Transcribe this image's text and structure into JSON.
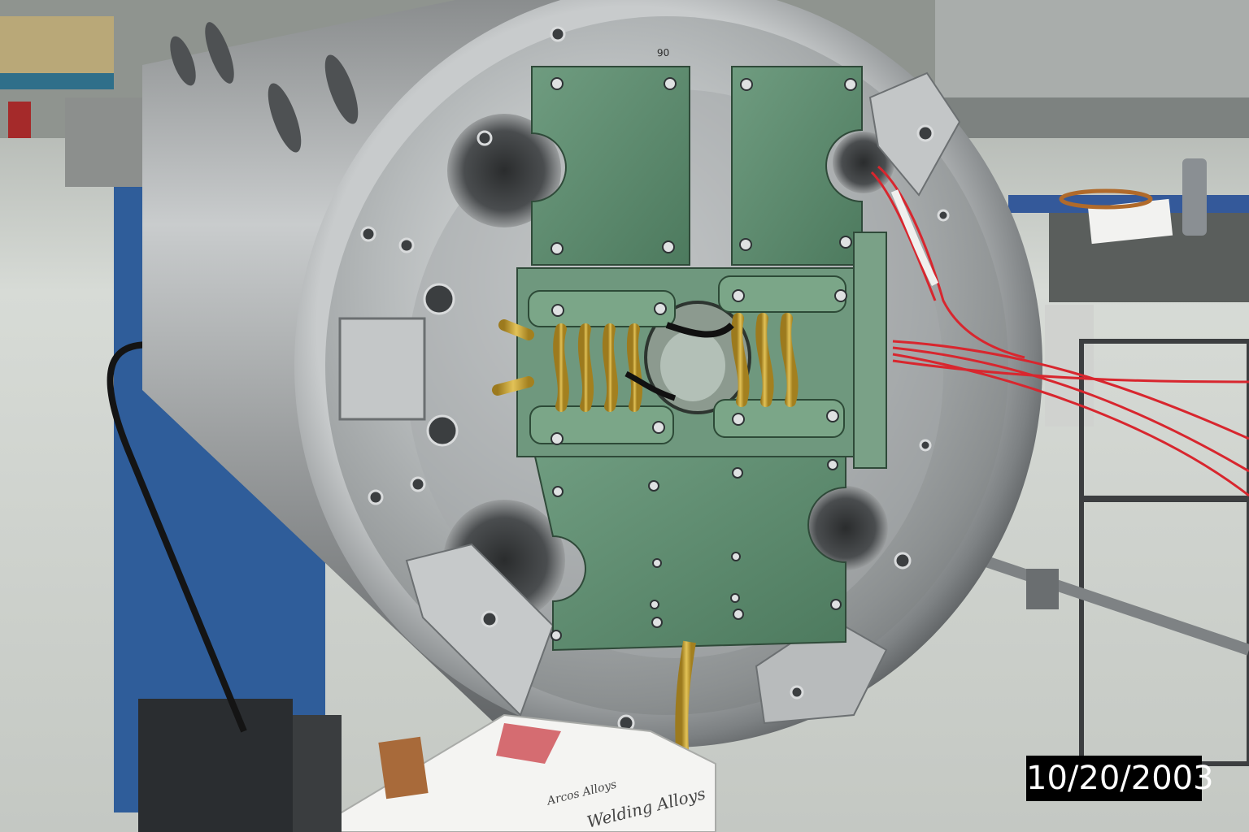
{
  "photo": {
    "description_label": "",
    "date_stamp": "10/20/2003",
    "end_plate_marking": "90",
    "box_brand": "Arcos Alloys",
    "box_tagline": "Welding Alloys"
  },
  "colors": {
    "steel": "#b9bcbd",
    "steel_dark": "#6e7274",
    "insulator_green": "#5f8f70",
    "kapton_gold": "#c9a53a",
    "wire_red": "#d8262e",
    "stand_blue": "#2f5d9a",
    "floor": "#dde0dc"
  }
}
